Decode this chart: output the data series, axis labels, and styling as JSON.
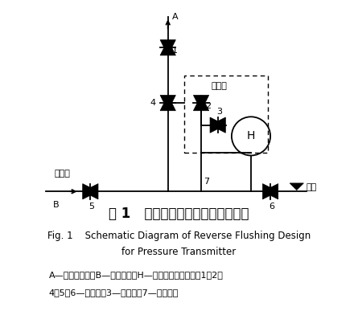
{
  "title_cn": "图 1   压力变送器反冲水设计示意图",
  "title_en_line1": "Fig. 1    Schematic Diagram of Reverse Flushing Design",
  "title_en_line2": "for Pressure Transmitter",
  "caption_line1": "A—接过程压力；B—接反冲水；H—压力变送器高压侧；1、2、",
  "caption_line2": "4、5、6—截止阀；3—排污阀；7—排污丝堵",
  "label_fanChongShui": "反冲水",
  "label_diLou": "地漏",
  "label_erFaZu": "二阀组",
  "bg_color": "#ffffff",
  "line_color": "#000000",
  "lw": 1.3
}
